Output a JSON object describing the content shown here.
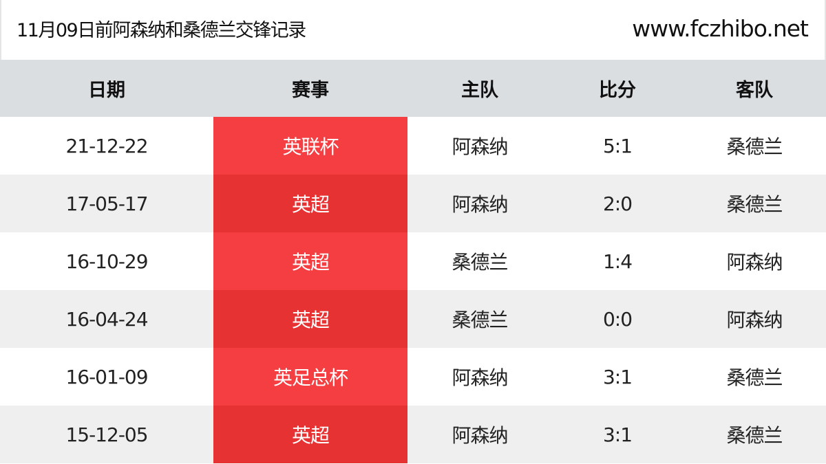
{
  "header": {
    "title": "11月09日前阿森纳和桑德兰交锋记录",
    "site": "www.fczhibo.net"
  },
  "colors": {
    "competition_a": "#f53e42",
    "competition_b": "#e73234",
    "header_bg": "#dadee1",
    "alt_row": "#efefef"
  },
  "columns": [
    "日期",
    "赛事",
    "主队",
    "比分",
    "客队"
  ],
  "rows": [
    {
      "date": "21-12-22",
      "competition": "英联杯",
      "home": "阿森纳",
      "score": "5:1",
      "away": "桑德兰"
    },
    {
      "date": "17-05-17",
      "competition": "英超",
      "home": "阿森纳",
      "score": "2:0",
      "away": "桑德兰"
    },
    {
      "date": "16-10-29",
      "competition": "英超",
      "home": "桑德兰",
      "score": "1:4",
      "away": "阿森纳"
    },
    {
      "date": "16-04-24",
      "competition": "英超",
      "home": "桑德兰",
      "score": "0:0",
      "away": "阿森纳"
    },
    {
      "date": "16-01-09",
      "competition": "英足总杯",
      "home": "阿森纳",
      "score": "3:1",
      "away": "桑德兰"
    },
    {
      "date": "15-12-05",
      "competition": "英超",
      "home": "阿森纳",
      "score": "3:1",
      "away": "桑德兰"
    }
  ]
}
